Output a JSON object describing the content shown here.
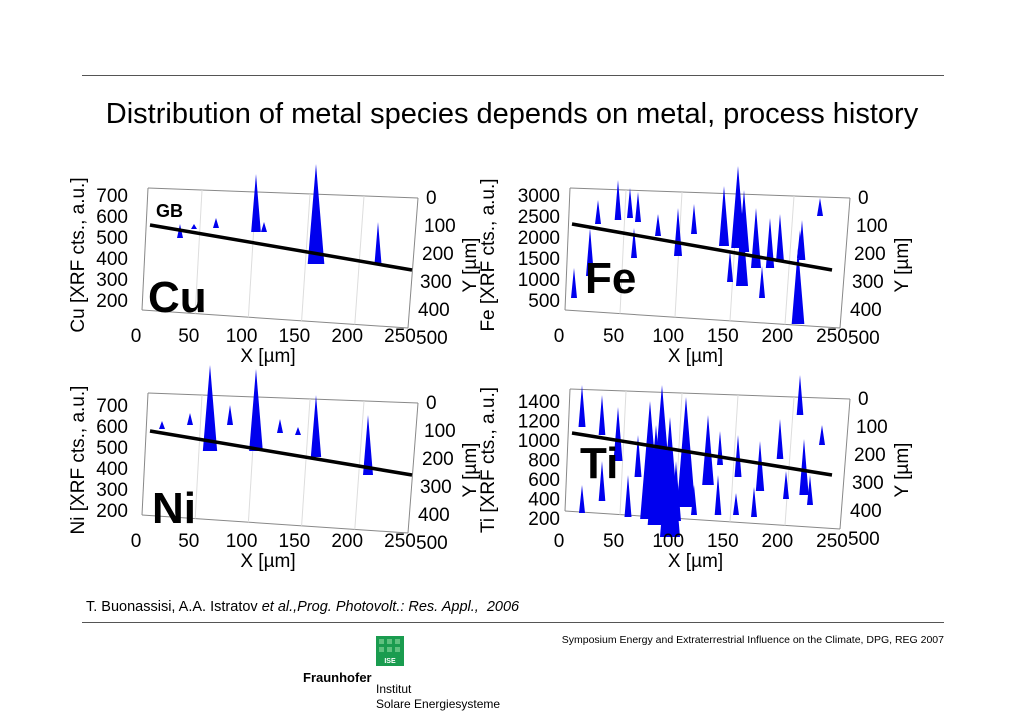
{
  "slide": {
    "title": "Distribution of metal species depends on metal, process history",
    "citation_authors": "T. Buonassisi, A.A. Istratov",
    "citation_etal": "et al.,",
    "citation_journal": "Prog. Photovolt.: Res. Appl.,",
    "citation_year": "2006",
    "footer": "Symposium Energy and Extraterrestrial Influence on the Climate, DPG, REG 2007",
    "logo": {
      "badge": "ISE",
      "org": "Fraunhofer",
      "line1": "Institut",
      "line2": "Solare Energiesysteme",
      "color": "#1a9c4f"
    }
  },
  "chart_data": [
    {
      "type": "surface3d",
      "element": "Cu",
      "zlabel": "Cu [XRF cts., a.u.]",
      "xlabel": "X [µm]",
      "ylabel": "Y [µm]",
      "z_ticks": [
        "700",
        "600",
        "500",
        "400",
        "300",
        "200"
      ],
      "x_ticks": [
        "0",
        "50",
        "100",
        "150",
        "200",
        "250"
      ],
      "y_ticks": [
        "0",
        "100",
        "200",
        "300",
        "400",
        "500"
      ],
      "annotation": "GB",
      "peak_color": "#0000ee"
    },
    {
      "type": "surface3d",
      "element": "Fe",
      "zlabel": "Fe [XRF cts., a.u.]",
      "xlabel": "X [µm]",
      "ylabel": "Y [µm]",
      "z_ticks": [
        "3000",
        "2500",
        "2000",
        "1500",
        "1000",
        "500"
      ],
      "x_ticks": [
        "0",
        "50",
        "100",
        "150",
        "200",
        "250"
      ],
      "y_ticks": [
        "0",
        "100",
        "200",
        "300",
        "400",
        "500"
      ],
      "peak_color": "#0000ee"
    },
    {
      "type": "surface3d",
      "element": "Ni",
      "zlabel": "Ni [XRF cts., a.u.]",
      "xlabel": "X [µm]",
      "ylabel": "Y [µm]",
      "z_ticks": [
        "700",
        "600",
        "500",
        "400",
        "300",
        "200"
      ],
      "x_ticks": [
        "0",
        "50",
        "100",
        "150",
        "200",
        "250"
      ],
      "y_ticks": [
        "0",
        "100",
        "200",
        "300",
        "400",
        "500"
      ],
      "peak_color": "#0000ee"
    },
    {
      "type": "surface3d",
      "element": "Ti",
      "zlabel": "Ti [XRF cts., a.u.]",
      "xlabel": "X [µm]",
      "ylabel": "Y [µm]",
      "z_ticks": [
        "1400",
        "1200",
        "1000",
        "800",
        "600",
        "400",
        "200"
      ],
      "x_ticks": [
        "0",
        "50",
        "100",
        "150",
        "200",
        "250"
      ],
      "y_ticks": [
        "0",
        "100",
        "200",
        "300",
        "400",
        "500"
      ],
      "peak_color": "#0000ee"
    }
  ]
}
